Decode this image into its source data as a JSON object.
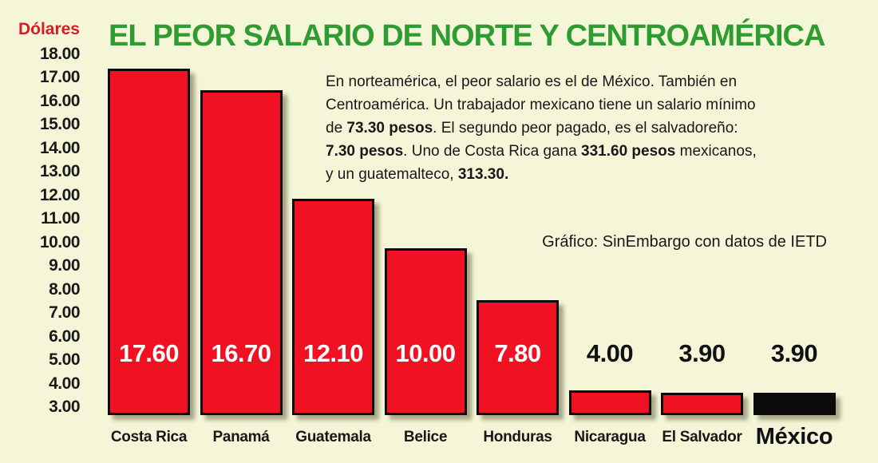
{
  "credit": {
    "text": "Gráfico: SinEmbargo con datos de IETD"
  },
  "description": {
    "lines": [
      [
        {
          "t": "En norteamérica, el peor salario es el de México. También en",
          "b": false
        }
      ],
      [
        {
          "t": "Centroamérica. Un trabajador mexicano tiene un salario mínimo",
          "b": false
        }
      ],
      [
        {
          "t": "de ",
          "b": false
        },
        {
          "t": "73.30 pesos",
          "b": true
        },
        {
          "t": ". El segundo peor pagado, es el salvadoreño:",
          "b": false
        }
      ],
      [
        {
          "t": "7.30 pesos",
          "b": true
        },
        {
          "t": ". Uno de Costa Rica gana ",
          "b": false
        },
        {
          "t": "331.60 pesos",
          "b": true
        },
        {
          "t": " mexicanos,",
          "b": false
        }
      ],
      [
        {
          "t": "y un guatemalteco, ",
          "b": false
        },
        {
          "t": "313.30.",
          "b": true
        }
      ]
    ]
  },
  "colors": {
    "background": "#F5F5D8",
    "title_green": "#2E9C30",
    "axis_red": "#D21F26",
    "bar_red": "#F01123",
    "bar_black": "#0A0A0A",
    "text_dark": "#18181b",
    "value_label_inside": "#FFFFFF",
    "value_label_outside": "#111114"
  },
  "chart_data": {
    "type": "bar",
    "title": "EL PEOR SALARIO DE NORTE Y CENTROAMÉRICA",
    "ylabel": "Dólares",
    "categories": [
      "Costa Rica",
      "Panamá",
      "Guatemala",
      "Belice",
      "Honduras",
      "Nicaragua",
      "El Salvador",
      "México"
    ],
    "values": [
      17.6,
      16.7,
      12.1,
      10.0,
      7.8,
      4.0,
      3.9,
      3.9
    ],
    "value_labels": [
      "17.60",
      "16.70",
      "12.10",
      "10.00",
      "7.80",
      "4.00",
      "3.90",
      "3.90"
    ],
    "bar_colors": [
      "#F01123",
      "#F01123",
      "#F01123",
      "#F01123",
      "#F01123",
      "#F01123",
      "#F01123",
      "#0A0A0A"
    ],
    "y_ticks": [
      "18.00",
      "17.00",
      "16.00",
      "15.00",
      "14.00",
      "13.00",
      "12.00",
      "11.00",
      "10.00",
      "9.00",
      "8.00",
      "7.00",
      "6.00",
      "5.00",
      "4.00",
      "3.00"
    ],
    "ylim": [
      3,
      18
    ],
    "grid": false,
    "legend": false,
    "highlight_category": "México"
  }
}
